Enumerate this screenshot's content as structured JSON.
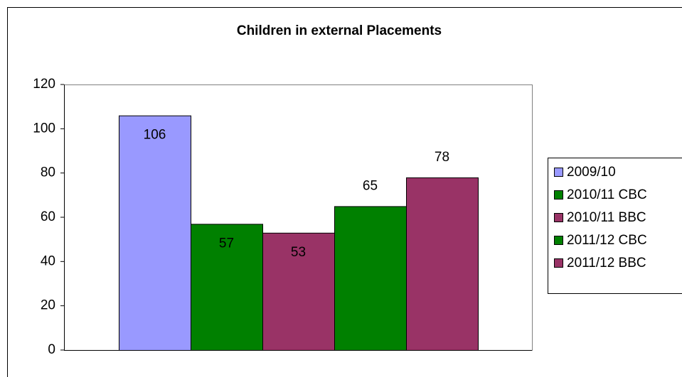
{
  "chart_data": {
    "type": "bar",
    "title": "Children in external Placements",
    "series": [
      {
        "name": "2009/10",
        "color": "#9999ff",
        "values": [
          106
        ]
      },
      {
        "name": "2010/11 CBC",
        "color": "#008000",
        "values": [
          57
        ]
      },
      {
        "name": "2010/11 BBC",
        "color": "#993366",
        "values": [
          53
        ]
      },
      {
        "name": "2011/12 CBC",
        "color": "#008000",
        "values": [
          65
        ]
      },
      {
        "name": "2011/12 BBC",
        "color": "#993366",
        "values": [
          78
        ]
      }
    ],
    "ylim": [
      0,
      120
    ],
    "yticks": [
      0,
      20,
      40,
      60,
      80,
      100,
      120
    ],
    "grid": false,
    "legend": "right"
  }
}
